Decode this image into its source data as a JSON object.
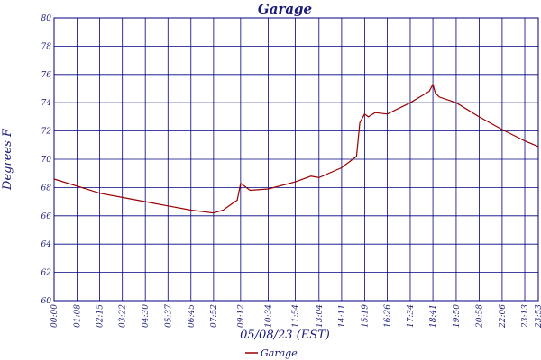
{
  "chart_data": {
    "type": "line",
    "title": "Garage",
    "xlabel": "05/08/23 (EST)",
    "ylabel": "Degrees F",
    "ylim": [
      60,
      80
    ],
    "yticks": [
      "60",
      "62",
      "64",
      "66",
      "68",
      "70",
      "72",
      "74",
      "76",
      "78",
      "80"
    ],
    "xticks": [
      "00:00",
      "01:08",
      "02:15",
      "03:22",
      "04:30",
      "05:37",
      "06:45",
      "07:52",
      "09:12",
      "10:34",
      "11:54",
      "13:04",
      "14:11",
      "15:19",
      "16:26",
      "17:34",
      "18:41",
      "19:50",
      "20:58",
      "22:06",
      "23:13",
      "23:53"
    ],
    "grid": true,
    "legend_position": "bottom-center",
    "colors": {
      "series": "#990000",
      "axis": "#000080",
      "text": "#1a1a7a"
    },
    "series": [
      {
        "name": "Garage",
        "x": [
          "00:00",
          "01:08",
          "02:15",
          "03:22",
          "04:30",
          "05:37",
          "06:45",
          "07:52",
          "08:20",
          "08:55",
          "09:02",
          "09:12",
          "09:40",
          "10:34",
          "11:54",
          "12:40",
          "13:04",
          "14:11",
          "14:55",
          "15:05",
          "15:19",
          "15:30",
          "15:50",
          "16:26",
          "17:34",
          "18:30",
          "18:41",
          "18:48",
          "19:00",
          "19:50",
          "20:58",
          "22:06",
          "23:13",
          "23:53"
        ],
        "y": [
          68.6,
          68.1,
          67.6,
          67.3,
          67.0,
          66.7,
          66.4,
          66.2,
          66.4,
          67.0,
          67.1,
          68.3,
          67.8,
          67.9,
          68.4,
          68.8,
          68.7,
          69.4,
          70.2,
          72.6,
          73.2,
          73.0,
          73.3,
          73.2,
          74.0,
          74.8,
          75.3,
          74.7,
          74.4,
          74.0,
          73.0,
          72.1,
          71.3,
          70.9
        ]
      }
    ]
  }
}
